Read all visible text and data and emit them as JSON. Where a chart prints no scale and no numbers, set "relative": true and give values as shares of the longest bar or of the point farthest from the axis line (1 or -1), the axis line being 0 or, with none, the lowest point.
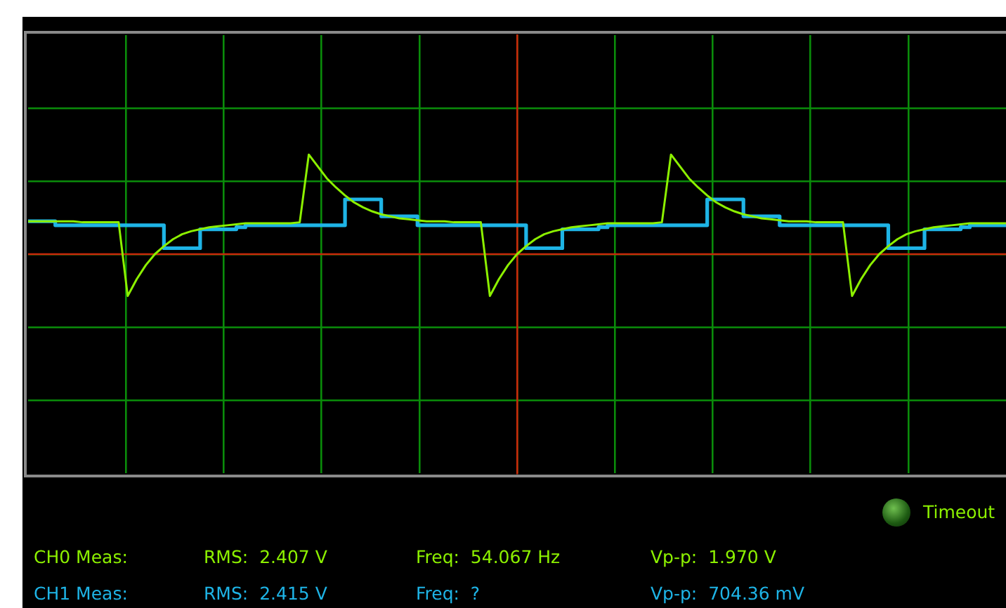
{
  "chart_data": {
    "type": "line",
    "relative": true,
    "grid": true,
    "categories": [
      null,
      null,
      null,
      null,
      null,
      null,
      null,
      null,
      null,
      null,
      null,
      null,
      null,
      null,
      null,
      null,
      null,
      null,
      null,
      null,
      null,
      null,
      null,
      null,
      null,
      null,
      null,
      null,
      null,
      null,
      null,
      null,
      null,
      null,
      null,
      null,
      null,
      null,
      null,
      null,
      null,
      null,
      null,
      null,
      null,
      null,
      null,
      null,
      null,
      null,
      null,
      null,
      null,
      null,
      null,
      null,
      null,
      null,
      null,
      null,
      null,
      null,
      null,
      null,
      null,
      null,
      null,
      null,
      null,
      null,
      null,
      null,
      null,
      null,
      null,
      null,
      null,
      null,
      null,
      null,
      null,
      null,
      null,
      null,
      null,
      null,
      null,
      null,
      null,
      null,
      null,
      null,
      null,
      null,
      null,
      null,
      null,
      null,
      null,
      null,
      null,
      null,
      null,
      null,
      null,
      null,
      null,
      null,
      null
    ],
    "series": [
      {
        "type": "line",
        "color": "#8cf000",
        "values": [
          0.33,
          0.33,
          0.33,
          0.33,
          0.33,
          0.33,
          0.32,
          0.32,
          0.32,
          0.32,
          0.32,
          -0.42,
          -0.25,
          -0.11,
          0.0,
          0.08,
          0.15,
          0.2,
          0.23,
          0.25,
          0.27,
          0.28,
          0.29,
          0.3,
          0.31,
          0.31,
          0.31,
          0.31,
          0.31,
          0.31,
          0.32,
          1.0,
          0.88,
          0.76,
          0.67,
          0.59,
          0.52,
          0.47,
          0.43,
          0.4,
          0.38,
          0.36,
          0.35,
          0.34,
          0.33,
          0.33,
          0.33,
          0.32,
          0.32,
          0.32,
          0.32,
          -0.42,
          -0.25,
          -0.11,
          0.0,
          0.08,
          0.15,
          0.2,
          0.23,
          0.25,
          0.27,
          0.28,
          0.29,
          0.3,
          0.31,
          0.31,
          0.31,
          0.31,
          0.31,
          0.31,
          0.32,
          1.0,
          0.88,
          0.76,
          0.67,
          0.59,
          0.52,
          0.47,
          0.43,
          0.4,
          0.38,
          0.36,
          0.35,
          0.34,
          0.33,
          0.33,
          0.33,
          0.32,
          0.32,
          0.32,
          0.32,
          -0.42,
          -0.25,
          -0.11,
          0.0,
          0.08,
          0.15,
          0.2,
          0.23,
          0.25,
          0.27,
          0.28,
          0.29,
          0.3,
          0.31,
          0.31,
          0.31,
          0.31,
          0.31
        ]
      },
      {
        "type": "step",
        "color": "#1eb4e6",
        "values": [
          0.33,
          0.33,
          0.33,
          0.29,
          0.29,
          0.29,
          0.29,
          0.29,
          0.29,
          0.29,
          0.29,
          0.29,
          0.29,
          0.29,
          0.29,
          0.06,
          0.06,
          0.06,
          0.06,
          0.25,
          0.25,
          0.25,
          0.25,
          0.27,
          0.29,
          0.29,
          0.29,
          0.29,
          0.29,
          0.29,
          0.29,
          0.29,
          0.29,
          0.29,
          0.29,
          0.55,
          0.55,
          0.55,
          0.55,
          0.38,
          0.38,
          0.38,
          0.38,
          0.29,
          0.29,
          0.29,
          0.29,
          0.29,
          0.29,
          0.29,
          0.29,
          0.29,
          0.29,
          0.29,
          0.29,
          0.06,
          0.06,
          0.06,
          0.06,
          0.25,
          0.25,
          0.25,
          0.25,
          0.27,
          0.29,
          0.29,
          0.29,
          0.29,
          0.29,
          0.29,
          0.29,
          0.29,
          0.29,
          0.29,
          0.29,
          0.55,
          0.55,
          0.55,
          0.55,
          0.38,
          0.38,
          0.38,
          0.38,
          0.29,
          0.29,
          0.29,
          0.29,
          0.29,
          0.29,
          0.29,
          0.29,
          0.29,
          0.29,
          0.29,
          0.29,
          0.06,
          0.06,
          0.06,
          0.06,
          0.25,
          0.25,
          0.25,
          0.25,
          0.27,
          0.29,
          0.29,
          0.29,
          0.29,
          0.29
        ]
      }
    ],
    "ref_lines": [
      {
        "axis": "y",
        "value": 0,
        "color": "#c8280a"
      }
    ],
    "annotations": [
      "CH0 Meas:",
      "RMS:  2.407 V",
      "Freq:  54.067 Hz",
      "Vp-p:  1.970 V",
      "CH1 Meas:",
      "RMS:  2.415 V",
      "Freq:  ?",
      "Vp-p:  704.36 mV",
      "Timeout"
    ]
  }
}
